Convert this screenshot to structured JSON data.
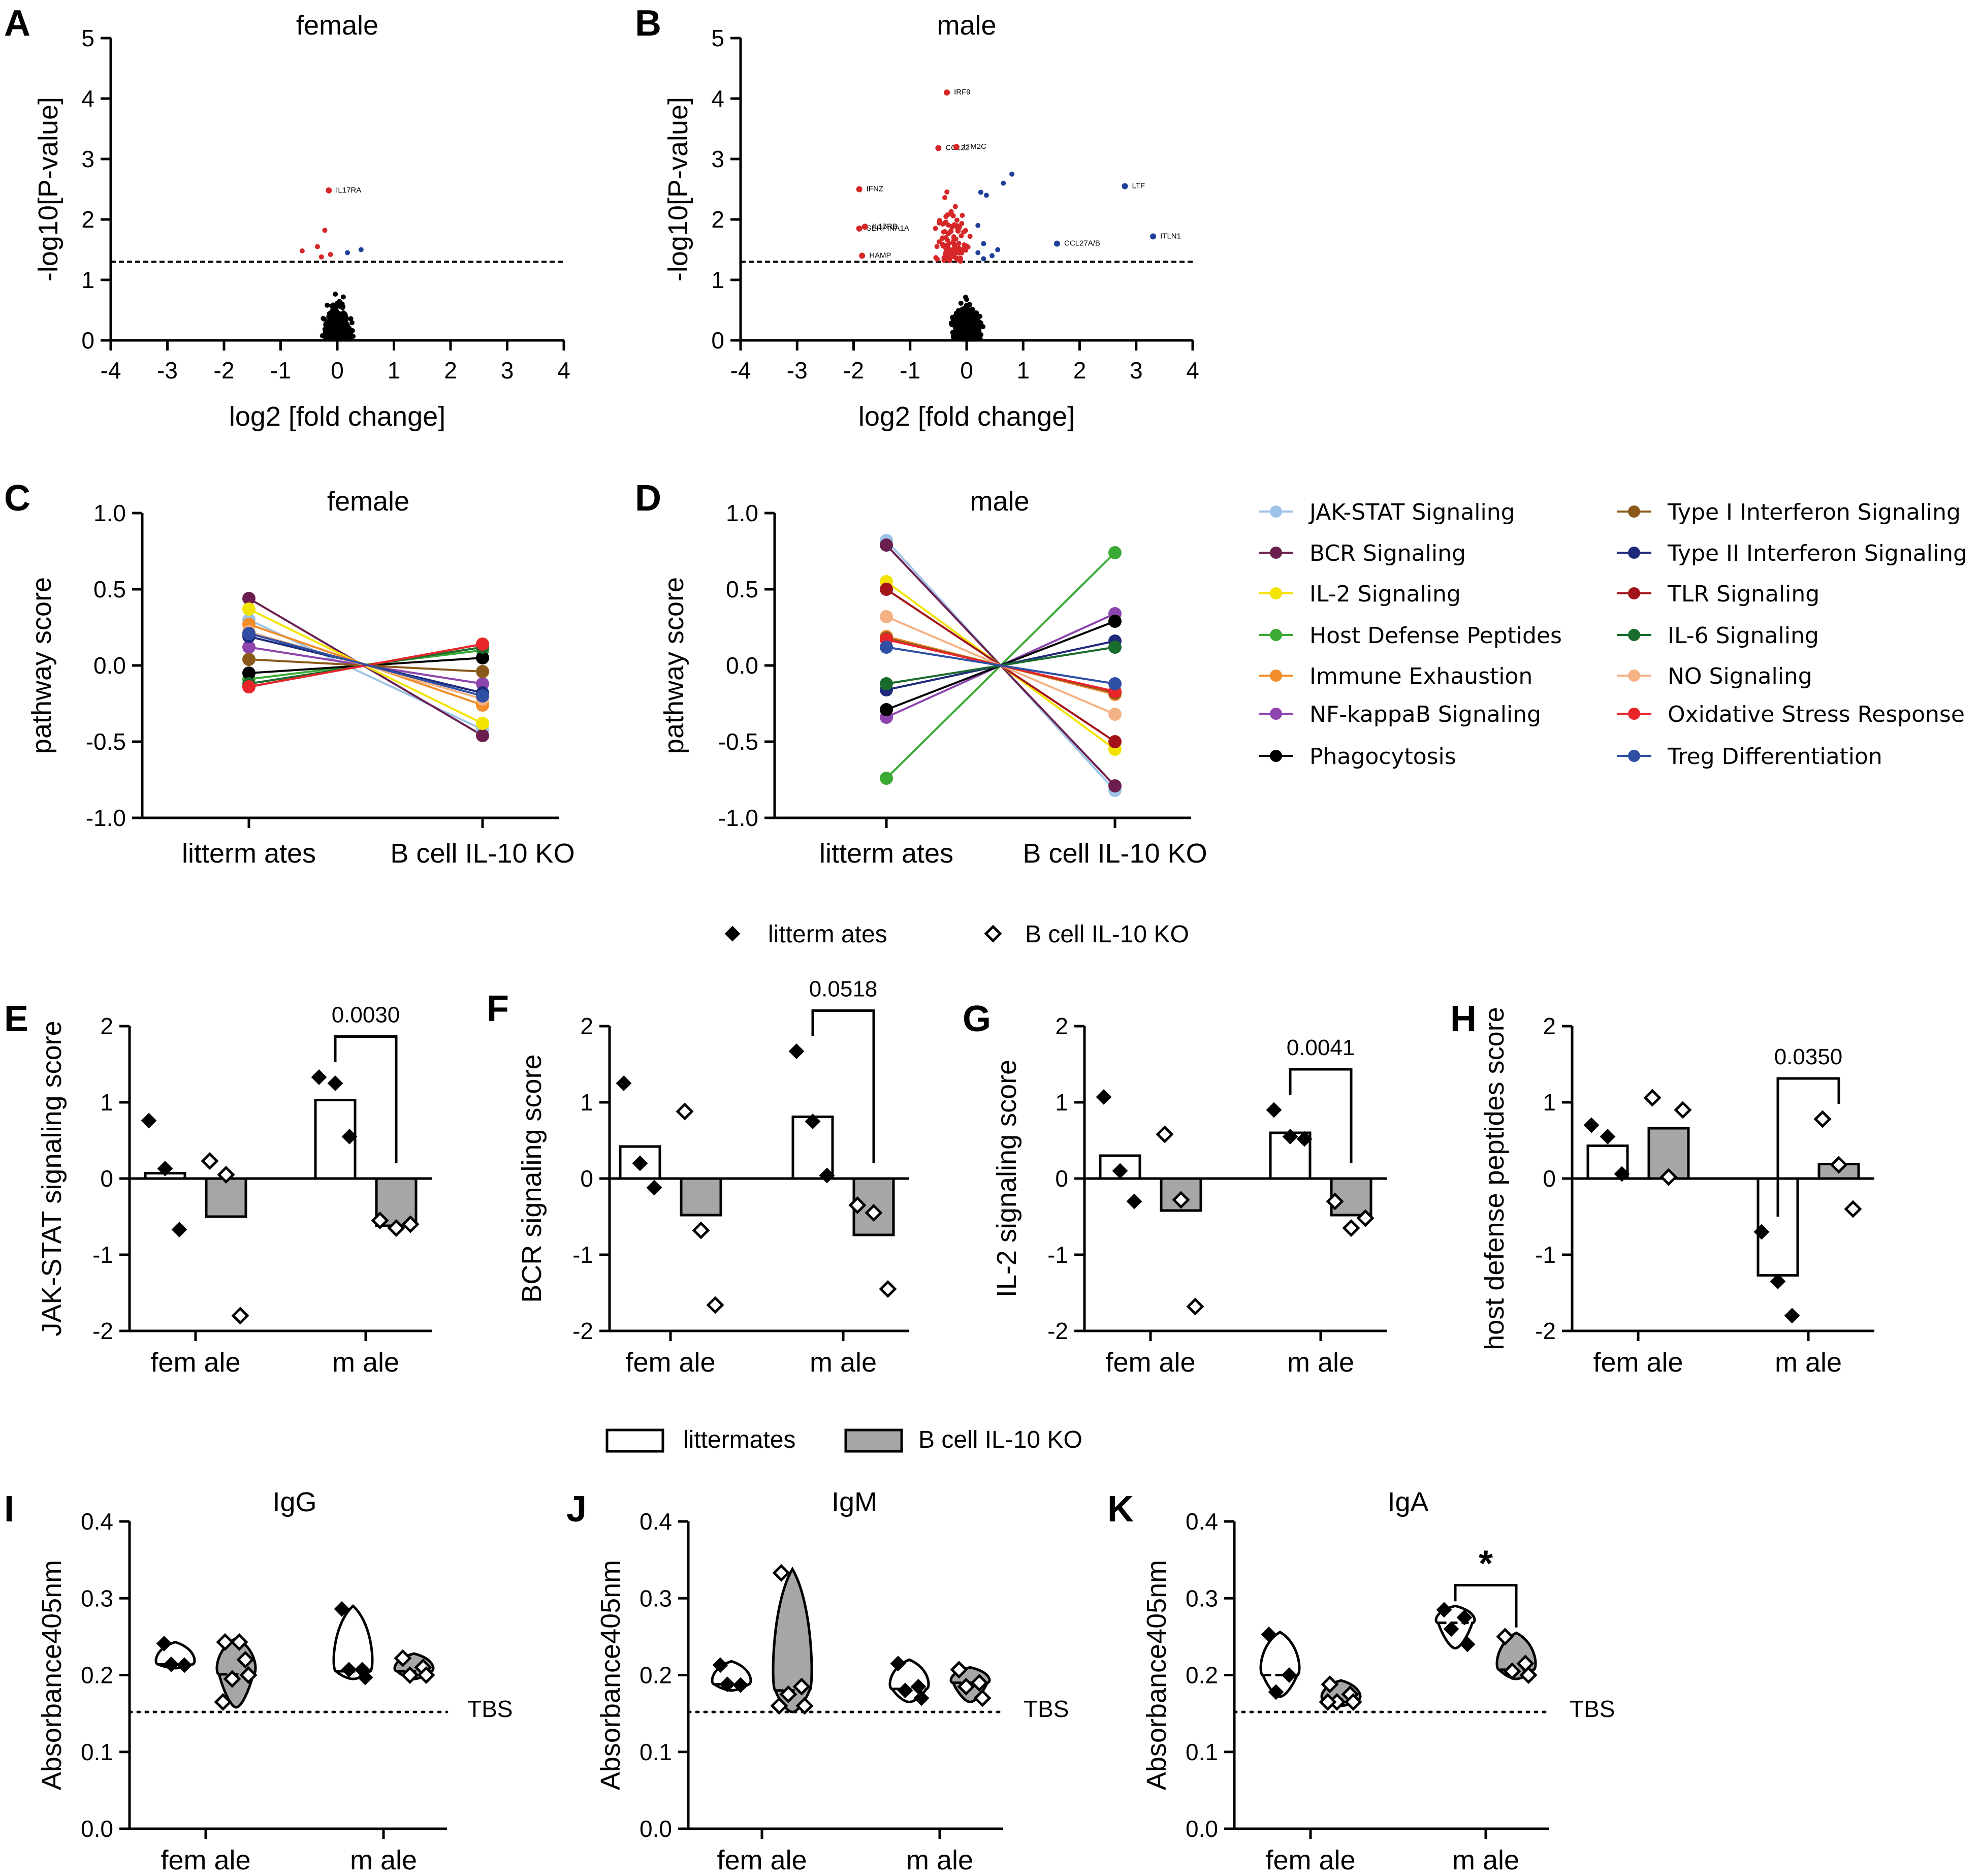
{
  "chart_data": [
    {
      "id": "A",
      "type": "scatter",
      "title": "female",
      "xlabel": "log2 [fold change]",
      "ylabel": "-log10[P-value]",
      "xlim": [
        -4,
        4
      ],
      "ylim": [
        0,
        5
      ],
      "xticks": [
        "-4",
        "-3",
        "-2",
        "-1",
        "0",
        "1",
        "2",
        "3",
        "4"
      ],
      "yticks": [
        "0",
        "1",
        "2",
        "3",
        "4",
        "5"
      ],
      "threshold": 1.3,
      "labeled_points": [
        {
          "x": -0.15,
          "y": 2.48,
          "label": "IL17RA",
          "color": "#d62728"
        }
      ],
      "significant_points": [
        [
          -0.22,
          1.82
        ],
        [
          -0.35,
          1.55
        ],
        [
          -0.62,
          1.48
        ],
        [
          -0.12,
          1.42
        ],
        [
          -0.28,
          1.38
        ]
      ],
      "up_points": [
        [
          0.18,
          1.45
        ],
        [
          0.42,
          1.5
        ]
      ]
    },
    {
      "id": "B",
      "type": "scatter",
      "title": "male",
      "xlabel": "log2 [fold change]",
      "ylabel": "-log10[P-value]",
      "xlim": [
        -4,
        4
      ],
      "ylim": [
        0,
        5
      ],
      "xticks": [
        "-4",
        "-3",
        "-2",
        "-1",
        "0",
        "1",
        "2",
        "3",
        "4"
      ],
      "yticks": [
        "0",
        "1",
        "2",
        "3",
        "4",
        "5"
      ],
      "threshold": 1.3,
      "labeled_points": [
        {
          "x": -0.35,
          "y": 4.1,
          "label": "IRF9",
          "color": "#d62728"
        },
        {
          "x": -0.5,
          "y": 3.18,
          "label": "CCL22",
          "color": "#d62728"
        },
        {
          "x": -0.18,
          "y": 3.2,
          "label": "ITM2C",
          "color": "#d62728"
        },
        {
          "x": -1.9,
          "y": 2.5,
          "label": "IFNZ",
          "color": "#d62728"
        },
        {
          "x": -1.9,
          "y": 1.85,
          "label": "SERPINA1A",
          "color": "#d62728"
        },
        {
          "x": -1.8,
          "y": 1.88,
          "label": "IL17RB",
          "color": "#d62728"
        },
        {
          "x": -1.85,
          "y": 1.4,
          "label": "HAMP",
          "color": "#d62728"
        },
        {
          "x": 1.6,
          "y": 1.6,
          "label": "CCL27A/B",
          "color": "#1f3f99"
        },
        {
          "x": 2.8,
          "y": 2.55,
          "label": "LTF",
          "color": "#1f3f99"
        },
        {
          "x": 3.3,
          "y": 1.72,
          "label": "ITLN1",
          "color": "#1f3f99"
        }
      ]
    },
    {
      "id": "C",
      "type": "line",
      "title": "female",
      "ylabel": "pathway score",
      "categories": [
        "litterm ates",
        "B cell IL-10 KO"
      ],
      "ylim": [
        -1.0,
        1.0
      ],
      "yticks": [
        "-1.0",
        "-0.5",
        "0.0",
        "0.5",
        "1.0"
      ],
      "series": [
        {
          "name": "JAK-STAT Signaling",
          "color": "#9dc3e6",
          "values": [
            0.3,
            -0.42
          ]
        },
        {
          "name": "BCR Signaling",
          "color": "#6b1f4f",
          "values": [
            0.44,
            -0.46
          ]
        },
        {
          "name": "IL-2 Signaling",
          "color": "#f2e400",
          "values": [
            0.37,
            -0.38
          ]
        },
        {
          "name": "Host Defense Peptides",
          "color": "#3aaa35",
          "values": [
            -0.09,
            0.1
          ]
        },
        {
          "name": "Immune Exhaustion",
          "color": "#f28c28",
          "values": [
            0.27,
            -0.26
          ]
        },
        {
          "name": "NF-kappaB Signaling",
          "color": "#8e44ad",
          "values": [
            0.12,
            -0.12
          ]
        },
        {
          "name": "Phagocytosis",
          "color": "#000000",
          "values": [
            -0.05,
            0.05
          ]
        },
        {
          "name": "Type I Interferon Signaling",
          "color": "#8b5a1a",
          "values": [
            0.04,
            -0.04
          ]
        },
        {
          "name": "Type II Interferon Signaling",
          "color": "#1f2a7a",
          "values": [
            0.19,
            -0.18
          ]
        },
        {
          "name": "TLR Signaling",
          "color": "#a3131a",
          "values": [
            -0.14,
            0.14
          ]
        },
        {
          "name": "IL-6 Signaling",
          "color": "#1a6b2e",
          "values": [
            -0.12,
            0.12
          ]
        },
        {
          "name": "NO Signaling",
          "color": "#f4b183",
          "values": [
            0.22,
            -0.22
          ]
        },
        {
          "name": "Oxidative Stress Response",
          "color": "#e8262a",
          "values": [
            -0.14,
            0.14
          ]
        },
        {
          "name": "Treg Differentiation",
          "color": "#2e4fa3",
          "values": [
            0.21,
            -0.2
          ]
        }
      ]
    },
    {
      "id": "D",
      "type": "line",
      "title": "male",
      "ylabel": "pathway score",
      "categories": [
        "litterm ates",
        "B cell IL-10 KO"
      ],
      "ylim": [
        -1.0,
        1.0
      ],
      "yticks": [
        "-1.0",
        "-0.5",
        "0.0",
        "0.5",
        "1.0"
      ],
      "series": [
        {
          "name": "JAK-STAT Signaling",
          "color": "#9dc3e6",
          "values": [
            0.82,
            -0.82
          ]
        },
        {
          "name": "BCR Signaling",
          "color": "#6b1f4f",
          "values": [
            0.79,
            -0.79
          ]
        },
        {
          "name": "IL-2 Signaling",
          "color": "#f2e400",
          "values": [
            0.55,
            -0.55
          ]
        },
        {
          "name": "Host Defense Peptides",
          "color": "#3aaa35",
          "values": [
            -0.74,
            0.74
          ]
        },
        {
          "name": "Immune Exhaustion",
          "color": "#f28c28",
          "values": [
            0.19,
            -0.19
          ]
        },
        {
          "name": "NF-kappaB Signaling",
          "color": "#8e44ad",
          "values": [
            -0.34,
            0.34
          ]
        },
        {
          "name": "Phagocytosis",
          "color": "#000000",
          "values": [
            -0.29,
            0.29
          ]
        },
        {
          "name": "Type I Interferon Signaling",
          "color": "#8b5a1a",
          "values": [
            0.18,
            -0.18
          ]
        },
        {
          "name": "Type II Interferon Signaling",
          "color": "#1f2a7a",
          "values": [
            -0.16,
            0.16
          ]
        },
        {
          "name": "TLR Signaling",
          "color": "#a3131a",
          "values": [
            0.5,
            -0.5
          ]
        },
        {
          "name": "IL-6 Signaling",
          "color": "#1a6b2e",
          "values": [
            -0.12,
            0.12
          ]
        },
        {
          "name": "NO Signaling",
          "color": "#f4b183",
          "values": [
            0.32,
            -0.32
          ]
        },
        {
          "name": "Oxidative Stress Response",
          "color": "#e8262a",
          "values": [
            0.17,
            -0.17
          ]
        },
        {
          "name": "Treg Differentiation",
          "color": "#2e4fa3",
          "values": [
            0.12,
            -0.12
          ]
        }
      ]
    },
    {
      "id": "E",
      "type": "bar",
      "ylabel": "JAK-STAT signaling score",
      "categories": [
        "fem ale",
        "m ale"
      ],
      "ylim": [
        -2,
        2
      ],
      "yticks": [
        "-2",
        "-1",
        "0",
        "1",
        "2"
      ],
      "series": [
        {
          "name": "littermates",
          "means": [
            0.07,
            1.03
          ],
          "points": [
            [
              0.76,
              0.13,
              -0.67
            ],
            [
              1.33,
              1.25,
              0.55
            ]
          ]
        },
        {
          "name": "B cell IL-10 KO",
          "means": [
            -0.5,
            -0.62
          ],
          "points": [
            [
              0.23,
              0.05,
              -1.8
            ],
            [
              -0.55,
              -0.65,
              -0.6
            ]
          ]
        }
      ],
      "pvalue": "0.0030",
      "pvalue_group": 1
    },
    {
      "id": "F",
      "type": "bar",
      "ylabel": "BCR signaling score",
      "categories": [
        "fem ale",
        "m ale"
      ],
      "ylim": [
        -2,
        2
      ],
      "yticks": [
        "-2",
        "-1",
        "0",
        "1",
        "2"
      ],
      "series": [
        {
          "name": "littermates",
          "means": [
            0.42,
            0.81
          ],
          "points": [
            [
              1.25,
              0.2,
              -0.12
            ],
            [
              1.67,
              0.75,
              0.04
            ]
          ]
        },
        {
          "name": "B cell IL-10 KO",
          "means": [
            -0.48,
            -0.74
          ],
          "points": [
            [
              0.88,
              -0.68,
              -1.66
            ],
            [
              -0.35,
              -0.45,
              -1.45
            ]
          ]
        }
      ],
      "pvalue": "0.0518",
      "pvalue_group": 1
    },
    {
      "id": "G",
      "type": "bar",
      "ylabel": "IL-2 signaling score",
      "categories": [
        "fem ale",
        "m ale"
      ],
      "ylim": [
        -2,
        2
      ],
      "yticks": [
        "-2",
        "-1",
        "0",
        "1",
        "2"
      ],
      "series": [
        {
          "name": "littermates",
          "means": [
            0.3,
            0.6
          ],
          "points": [
            [
              1.07,
              0.1,
              -0.3
            ],
            [
              0.9,
              0.55,
              0.52
            ]
          ]
        },
        {
          "name": "B cell IL-10 KO",
          "means": [
            -0.42,
            -0.48
          ],
          "points": [
            [
              0.58,
              -0.28,
              -1.68
            ],
            [
              -0.3,
              -0.65,
              -0.52
            ]
          ]
        }
      ],
      "pvalue": "0.0041",
      "pvalue_group": 1
    },
    {
      "id": "H",
      "type": "bar",
      "ylabel": "host defense peptides score",
      "categories": [
        "fem ale",
        "m ale"
      ],
      "ylim": [
        -2,
        2
      ],
      "yticks": [
        "-2",
        "-1",
        "0",
        "1",
        "2"
      ],
      "series": [
        {
          "name": "littermates",
          "means": [
            0.43,
            -1.27
          ],
          "points": [
            [
              0.7,
              0.55,
              0.06
            ],
            [
              -0.7,
              -1.35,
              -1.8
            ]
          ]
        },
        {
          "name": "B cell IL-10 KO",
          "means": [
            0.66,
            0.19
          ],
          "points": [
            [
              1.06,
              0.02,
              0.9
            ],
            [
              0.78,
              0.18,
              -0.4
            ]
          ]
        }
      ],
      "pvalue": "0.0350",
      "pvalue_group": 1
    },
    {
      "id": "I",
      "type": "violin",
      "title": "IgG",
      "ylabel": "Absorbance405nm",
      "categories": [
        "fem ale",
        "m ale"
      ],
      "ylim": [
        0,
        0.4
      ],
      "yticks": [
        "0.0",
        "0.1",
        "0.2",
        "0.3",
        "0.4"
      ],
      "baseline": 0.152,
      "baseline_label": "TBS",
      "groups": [
        {
          "category": 0,
          "fill": "#ffffff",
          "points": [
            0.241,
            0.213,
            0.214
          ],
          "min": 0.209,
          "max": 0.243,
          "median": 0.214
        },
        {
          "category": 0,
          "fill": "#a6a6a6",
          "points": [
            0.243,
            0.22,
            0.195,
            0.2,
            0.165,
            0.243
          ],
          "min": 0.158,
          "max": 0.248,
          "median": 0.201
        },
        {
          "category": 1,
          "fill": "#ffffff",
          "points": [
            0.286,
            0.207,
            0.207,
            0.197
          ],
          "min": 0.195,
          "max": 0.29,
          "median": 0.205
        },
        {
          "category": 1,
          "fill": "#a6a6a6",
          "points": [
            0.222,
            0.21,
            0.2,
            0.2
          ],
          "min": 0.195,
          "max": 0.228,
          "median": 0.205
        }
      ]
    },
    {
      "id": "J",
      "type": "violin",
      "title": "IgM",
      "ylabel": "Absorbance405nm",
      "categories": [
        "fem ale",
        "m ale"
      ],
      "ylim": [
        0,
        0.4
      ],
      "yticks": [
        "0.0",
        "0.1",
        "0.2",
        "0.3",
        "0.4"
      ],
      "baseline": 0.152,
      "baseline_label": "TBS",
      "groups": [
        {
          "category": 0,
          "fill": "#ffffff",
          "points": [
            0.213,
            0.187,
            0.188
          ],
          "min": 0.18,
          "max": 0.218,
          "median": 0.188
        },
        {
          "category": 0,
          "fill": "#a6a6a6",
          "points": [
            0.333,
            0.185,
            0.175,
            0.16,
            0.16
          ],
          "min": 0.152,
          "max": 0.338,
          "median": 0.18
        },
        {
          "category": 1,
          "fill": "#ffffff",
          "points": [
            0.215,
            0.185,
            0.18,
            0.17
          ],
          "min": 0.165,
          "max": 0.22,
          "median": 0.182
        },
        {
          "category": 1,
          "fill": "#a6a6a6",
          "points": [
            0.207,
            0.19,
            0.185,
            0.17
          ],
          "min": 0.165,
          "max": 0.21,
          "median": 0.19
        }
      ]
    },
    {
      "id": "K",
      "type": "violin",
      "title": "IgA",
      "ylabel": "Absorbance405nm",
      "categories": [
        "fem ale",
        "m ale"
      ],
      "ylim": [
        0,
        0.4
      ],
      "yticks": [
        "0.0",
        "0.1",
        "0.2",
        "0.3",
        "0.4"
      ],
      "baseline": 0.152,
      "baseline_label": "TBS",
      "groups": [
        {
          "category": 0,
          "fill": "#ffffff",
          "points": [
            0.253,
            0.2,
            0.178
          ],
          "min": 0.172,
          "max": 0.256,
          "median": 0.2
        },
        {
          "category": 0,
          "fill": "#a6a6a6",
          "points": [
            0.188,
            0.175,
            0.165,
            0.165,
            0.165
          ],
          "min": 0.16,
          "max": 0.193,
          "median": 0.168
        },
        {
          "category": 1,
          "fill": "#ffffff",
          "points": [
            0.285,
            0.275,
            0.26,
            0.24
          ],
          "min": 0.235,
          "max": 0.29,
          "median": 0.268
        },
        {
          "category": 1,
          "fill": "#a6a6a6",
          "points": [
            0.25,
            0.215,
            0.205,
            0.2
          ],
          "min": 0.195,
          "max": 0.255,
          "median": 0.207
        }
      ],
      "significance": "*"
    }
  ],
  "legends": {
    "pathways": [
      "JAK-STAT Signaling",
      "BCR Signaling",
      "IL-2 Signaling",
      "Host Defense Peptides",
      "Immune Exhaustion",
      "NF-kappaB Signaling",
      "Phagocytosis",
      "Type I Interferon Signaling",
      "Type II Interferon Signaling",
      "TLR Signaling",
      "IL-6 Signaling",
      "NO Signaling",
      "Oxidative Stress Response",
      "Treg Differentiation"
    ],
    "diamonds": {
      "filled": "litterm ates",
      "open": "B cell IL-10 KO"
    },
    "boxes": {
      "white": "littermates",
      "gray": "B cell IL-10 KO"
    }
  },
  "panel_letters": [
    "A",
    "B",
    "C",
    "D",
    "E",
    "F",
    "G",
    "H",
    "I",
    "J",
    "K"
  ]
}
